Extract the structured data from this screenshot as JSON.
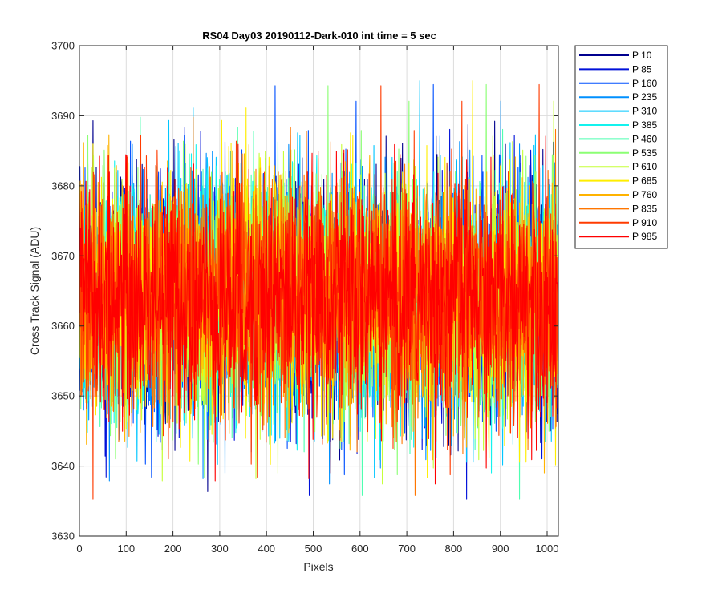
{
  "chart_data": {
    "type": "line",
    "title": "RS04 Day03 20190112-Dark-010 int time = 5 sec",
    "xlabel": "Pixels",
    "ylabel": "Cross Track Signal (ADU)",
    "xlim": [
      0,
      1024
    ],
    "ylim": [
      3630,
      3700
    ],
    "xticks": [
      0,
      100,
      200,
      300,
      400,
      500,
      600,
      700,
      800,
      900,
      1000
    ],
    "yticks": [
      3630,
      3640,
      3650,
      3660,
      3670,
      3680,
      3690,
      3700
    ],
    "xtick_labels": [
      "0",
      "100",
      "200",
      "300",
      "400",
      "500",
      "600",
      "700",
      "800",
      "900",
      "1000"
    ],
    "ytick_labels": [
      "3630",
      "3640",
      "3650",
      "3660",
      "3670",
      "3680",
      "3690",
      "3700"
    ],
    "grid": true,
    "legend_position": "outside-top-right",
    "noise_model": {
      "mean": 3664,
      "spread": 8.5,
      "min": 3632,
      "max": 3695,
      "points_per_series": 1024
    },
    "series": [
      {
        "name": "P 10",
        "color": "#00008f"
      },
      {
        "name": "P 85",
        "color": "#0011d9"
      },
      {
        "name": "P 160",
        "color": "#0050ff"
      },
      {
        "name": "P 235",
        "color": "#0090ff"
      },
      {
        "name": "P 310",
        "color": "#00c6ff"
      },
      {
        "name": "P 385",
        "color": "#13f2ee"
      },
      {
        "name": "P 460",
        "color": "#4effb1"
      },
      {
        "name": "P 535",
        "color": "#8bff74"
      },
      {
        "name": "P 610",
        "color": "#c6ff39"
      },
      {
        "name": "P 685",
        "color": "#ffee00"
      },
      {
        "name": "P 760",
        "color": "#ffb300"
      },
      {
        "name": "P 835",
        "color": "#ff7600"
      },
      {
        "name": "P 910",
        "color": "#ff3b00"
      },
      {
        "name": "P 985",
        "color": "#ff0000"
      }
    ]
  }
}
